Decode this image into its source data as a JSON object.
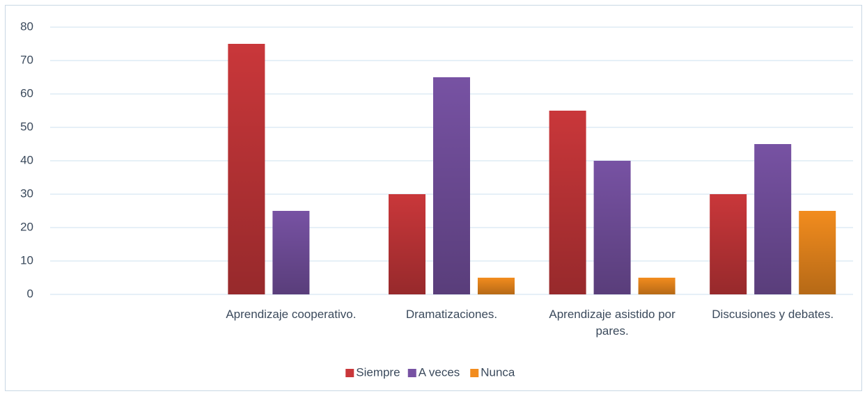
{
  "chart_data": {
    "type": "bar",
    "categories": [
      null,
      "Aprendizaje cooperativo.",
      "Dramatizaciones.",
      "Aprendizaje asistido por pares.",
      "Discusiones y debates."
    ],
    "series": [
      {
        "name": "Siempre",
        "color": "#c9373a",
        "values": [
          null,
          75,
          30,
          55,
          30
        ]
      },
      {
        "name": "A veces",
        "color": "#7752a3",
        "values": [
          null,
          25,
          65,
          40,
          45
        ]
      },
      {
        "name": "Nunca",
        "color": "#f28c1e",
        "values": [
          null,
          0,
          5,
          5,
          25
        ]
      }
    ],
    "ylim": [
      0,
      80
    ],
    "yticks": [
      0,
      10,
      20,
      30,
      40,
      50,
      60,
      70,
      80
    ],
    "grid": true,
    "legend": "bottom"
  }
}
